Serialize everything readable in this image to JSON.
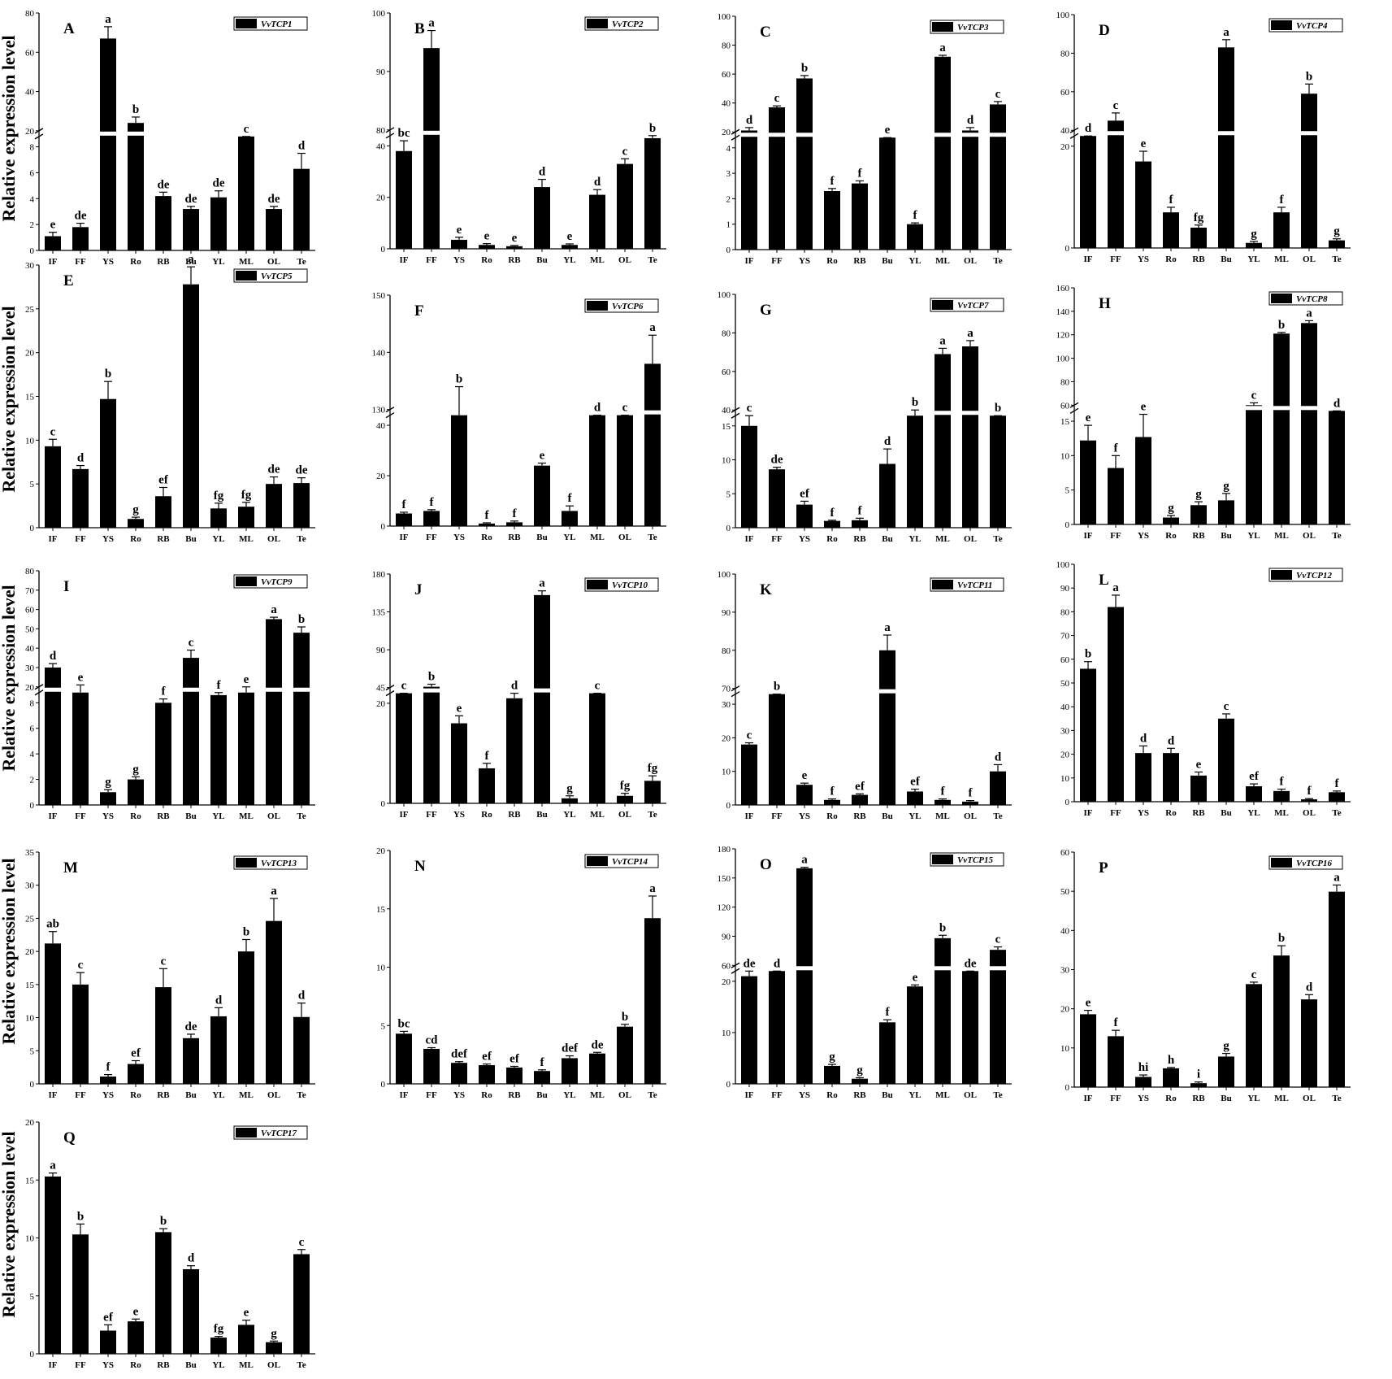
{
  "figure": {
    "ylabel": "Relative expression level",
    "categories": [
      "IF",
      "FF",
      "YS",
      "Ro",
      "RB",
      "Bu",
      "YL",
      "ML",
      "OL",
      "Te"
    ]
  },
  "chart_data": [
    {
      "type": "bar",
      "panel": "A",
      "legend": "VvTCP1",
      "values": [
        1.1,
        1.8,
        67,
        24,
        4.2,
        3.2,
        4.1,
        16,
        3.2,
        6.3
      ],
      "errors": [
        0.3,
        0.3,
        6,
        3,
        0.3,
        0.2,
        0.5,
        2,
        0.2,
        1.2
      ],
      "sig": [
        "e",
        "de",
        "a",
        "b",
        "de",
        "de",
        "de",
        "c",
        "de",
        "d"
      ],
      "lower_ticks": [
        0,
        2,
        4,
        6,
        8
      ],
      "upper_ticks": [
        20,
        40,
        60,
        80
      ]
    },
    {
      "type": "bar",
      "panel": "B",
      "legend": "VvTCP2",
      "values": [
        38,
        94,
        3.5,
        1.5,
        1,
        24,
        1.5,
        21,
        33,
        43
      ],
      "errors": [
        4,
        3,
        1,
        0.5,
        0.3,
        3,
        0.4,
        2,
        2,
        2
      ],
      "sig": [
        "bc",
        "a",
        "e",
        "e",
        "e",
        "d",
        "e",
        "d",
        "c",
        "b"
      ],
      "lower_ticks": [
        0,
        20,
        40
      ],
      "upper_ticks": [
        80,
        90,
        100
      ]
    },
    {
      "type": "bar",
      "panel": "C",
      "legend": "VvTCP3",
      "values": [
        21,
        37,
        57,
        2.3,
        2.6,
        16,
        1,
        72,
        21,
        39
      ],
      "errors": [
        2,
        1,
        2,
        0.1,
        0.1,
        1,
        0.05,
        1,
        2,
        2
      ],
      "sig": [
        "d",
        "c",
        "b",
        "f",
        "f",
        "e",
        "f",
        "a",
        "d",
        "c"
      ],
      "lower_ticks": [
        0,
        1,
        2,
        3,
        4
      ],
      "upper_ticks": [
        20,
        40,
        60,
        80,
        100
      ]
    },
    {
      "type": "bar",
      "panel": "D",
      "legend": "VvTCP4",
      "values": [
        27,
        45,
        17,
        7,
        4,
        83,
        1,
        7,
        59,
        1.5
      ],
      "errors": [
        2,
        4,
        2,
        1,
        0.5,
        4,
        0.3,
        1,
        5,
        0.3
      ],
      "sig": [
        "d",
        "c",
        "e",
        "f",
        "fg",
        "a",
        "g",
        "f",
        "b",
        "g"
      ],
      "lower_ticks": [
        0,
        20
      ],
      "upper_ticks": [
        40,
        60,
        80,
        100
      ]
    },
    {
      "type": "bar",
      "panel": "E",
      "legend": "VvTCP5",
      "values": [
        9.3,
        6.7,
        14.7,
        1,
        3.6,
        27.8,
        2.2,
        2.4,
        5,
        5.1
      ],
      "errors": [
        0.8,
        0.4,
        2,
        0.2,
        1,
        2,
        0.6,
        0.5,
        0.8,
        0.6
      ],
      "sig": [
        "c",
        "d",
        "b",
        "g",
        "ef",
        "a",
        "fg",
        "fg",
        "de",
        "de"
      ],
      "ticks": [
        0,
        5,
        10,
        15,
        20,
        25,
        30
      ]
    },
    {
      "type": "bar",
      "panel": "F",
      "legend": "VvTCP6",
      "values": [
        5,
        6,
        128,
        1,
        1.5,
        24,
        6,
        44,
        56,
        138
      ],
      "errors": [
        0.5,
        0.5,
        6,
        0.3,
        0.5,
        1,
        2,
        3,
        3,
        5
      ],
      "sig": [
        "f",
        "f",
        "b",
        "f",
        "f",
        "e",
        "f",
        "d",
        "c",
        "a"
      ],
      "lower_ticks": [
        0,
        20,
        40
      ],
      "upper_ticks": [
        130,
        140,
        150
      ]
    },
    {
      "type": "bar",
      "panel": "G",
      "legend": "VvTCP7",
      "values": [
        15,
        8.6,
        3.4,
        1,
        1.1,
        9.4,
        37,
        69,
        73,
        31
      ],
      "errors": [
        3.5,
        0.3,
        0.5,
        0.1,
        0.3,
        2.2,
        3,
        3,
        3,
        6
      ],
      "sig": [
        "c",
        "de",
        "ef",
        "f",
        "f",
        "d",
        "b",
        "a",
        "a",
        "b"
      ],
      "lower_ticks": [
        0,
        5,
        10,
        15
      ],
      "upper_ticks": [
        40,
        60,
        80,
        100
      ]
    },
    {
      "type": "bar",
      "panel": "H",
      "legend": "VvTCP8",
      "values": [
        12.2,
        8.2,
        12.7,
        1,
        2.8,
        3.5,
        60,
        121,
        130,
        50
      ],
      "errors": [
        2.2,
        1.8,
        3.3,
        0.3,
        0.5,
        1,
        2,
        1,
        2,
        3
      ],
      "sig": [
        "e",
        "f",
        "e",
        "g",
        "g",
        "g",
        "c",
        "b",
        "a",
        "d"
      ],
      "lower_ticks": [
        0,
        5,
        10,
        15
      ],
      "upper_ticks": [
        60,
        80,
        100,
        120,
        140,
        160
      ]
    },
    {
      "type": "bar",
      "panel": "I",
      "legend": "VvTCP9",
      "values": [
        30,
        19,
        1,
        2,
        8,
        35,
        8.6,
        18,
        55,
        48
      ],
      "errors": [
        2,
        2,
        0.2,
        0.2,
        0.3,
        4,
        0.7,
        2,
        1,
        3
      ],
      "sig": [
        "d",
        "e",
        "g",
        "g",
        "f",
        "c",
        "f",
        "e",
        "a",
        "b"
      ],
      "lower_ticks": [
        0,
        2,
        4,
        6,
        8
      ],
      "upper_ticks": [
        20,
        30,
        40,
        50,
        60,
        70,
        80
      ]
    },
    {
      "type": "bar",
      "panel": "J",
      "legend": "VvTCP10",
      "values": [
        34,
        46,
        16,
        7,
        21,
        155,
        1,
        30,
        1.5,
        4.5
      ],
      "errors": [
        3,
        3,
        1.5,
        1,
        2.5,
        5,
        0.5,
        2,
        0.5,
        1
      ],
      "sig": [
        "c",
        "b",
        "e",
        "f",
        "d",
        "a",
        "g",
        "c",
        "fg",
        "fg"
      ],
      "lower_ticks": [
        0,
        20
      ],
      "upper_ticks": [
        45,
        90,
        135,
        180
      ]
    },
    {
      "type": "bar",
      "panel": "K",
      "legend": "VvTCP11",
      "values": [
        18,
        33,
        6,
        1.5,
        3,
        80,
        4,
        1.5,
        1,
        10
      ],
      "errors": [
        0.5,
        3,
        0.5,
        0.3,
        0.3,
        4,
        0.7,
        0.3,
        0.3,
        2
      ],
      "sig": [
        "c",
        "b",
        "e",
        "f",
        "ef",
        "a",
        "ef",
        "f",
        "f",
        "d"
      ],
      "lower_ticks": [
        0,
        10,
        20,
        30
      ],
      "upper_ticks": [
        70,
        80,
        90,
        100
      ]
    },
    {
      "type": "bar",
      "panel": "L",
      "legend": "VvTCP12",
      "values": [
        56,
        82,
        20.5,
        20.5,
        11,
        35,
        6.5,
        4.5,
        1,
        4
      ],
      "errors": [
        3,
        5,
        3,
        2,
        1.5,
        2,
        1,
        0.8,
        0.3,
        0.5
      ],
      "sig": [
        "b",
        "a",
        "d",
        "d",
        "e",
        "c",
        "ef",
        "f",
        "f",
        "f"
      ],
      "ticks": [
        0,
        10,
        20,
        30,
        40,
        50,
        60,
        70,
        80,
        90,
        100
      ]
    },
    {
      "type": "bar",
      "panel": "M",
      "legend": "VvTCP13",
      "values": [
        21.2,
        15,
        1.1,
        3,
        14.6,
        6.9,
        10.2,
        20,
        24.6,
        10.1
      ],
      "errors": [
        1.8,
        1.8,
        0.3,
        0.5,
        2.8,
        0.6,
        1.3,
        1.8,
        3.4,
        2.1
      ],
      "sig": [
        "ab",
        "c",
        "f",
        "ef",
        "c",
        "de",
        "d",
        "b",
        "a",
        "d"
      ],
      "ticks": [
        0,
        5,
        10,
        15,
        20,
        25,
        30,
        35
      ]
    },
    {
      "type": "bar",
      "panel": "N",
      "legend": "VvTCP14",
      "values": [
        4.3,
        3,
        1.8,
        1.6,
        1.4,
        1.1,
        2.2,
        2.6,
        4.9,
        14.2
      ],
      "errors": [
        0.2,
        0.1,
        0.1,
        0.1,
        0.1,
        0.1,
        0.2,
        0.1,
        0.2,
        1.9
      ],
      "sig": [
        "bc",
        "cd",
        "def",
        "ef",
        "ef",
        "f",
        "def",
        "de",
        "b",
        "a"
      ],
      "ticks": [
        0,
        5,
        10,
        15,
        20
      ]
    },
    {
      "type": "bar",
      "panel": "O",
      "legend": "VvTCP15",
      "values": [
        21,
        24,
        160,
        3.5,
        1,
        12,
        19,
        88,
        22,
        76
      ],
      "errors": [
        1,
        1,
        1,
        0.3,
        0.2,
        0.5,
        0.3,
        3,
        3,
        3
      ],
      "sig": [
        "de",
        "d",
        "a",
        "g",
        "g",
        "f",
        "e",
        "b",
        "de",
        "c"
      ],
      "lower_ticks": [
        0,
        10,
        20
      ],
      "upper_ticks": [
        60,
        90,
        120,
        150,
        180
      ]
    },
    {
      "type": "bar",
      "panel": "P",
      "legend": "VvTCP16",
      "values": [
        18.6,
        13,
        2.6,
        4.8,
        1,
        7.8,
        26.3,
        33.6,
        22.4,
        49.9
      ],
      "errors": [
        1,
        1.5,
        0.5,
        0.2,
        0.3,
        0.8,
        0.5,
        2.5,
        1.2,
        1.7
      ],
      "sig": [
        "e",
        "f",
        "hi",
        "h",
        "i",
        "g",
        "c",
        "b",
        "d",
        "a"
      ],
      "ticks": [
        0,
        10,
        20,
        30,
        40,
        50,
        60
      ]
    },
    {
      "type": "bar",
      "panel": "Q",
      "legend": "VvTCP17",
      "values": [
        15.3,
        10.3,
        2,
        2.8,
        10.5,
        7.3,
        1.4,
        2.5,
        1,
        8.6
      ],
      "errors": [
        0.3,
        0.9,
        0.5,
        0.2,
        0.3,
        0.3,
        0.1,
        0.4,
        0.1,
        0.4
      ],
      "sig": [
        "a",
        "b",
        "ef",
        "e",
        "b",
        "d",
        "fg",
        "e",
        "g",
        "c"
      ],
      "ticks": [
        0,
        5,
        10,
        15,
        20
      ]
    }
  ]
}
